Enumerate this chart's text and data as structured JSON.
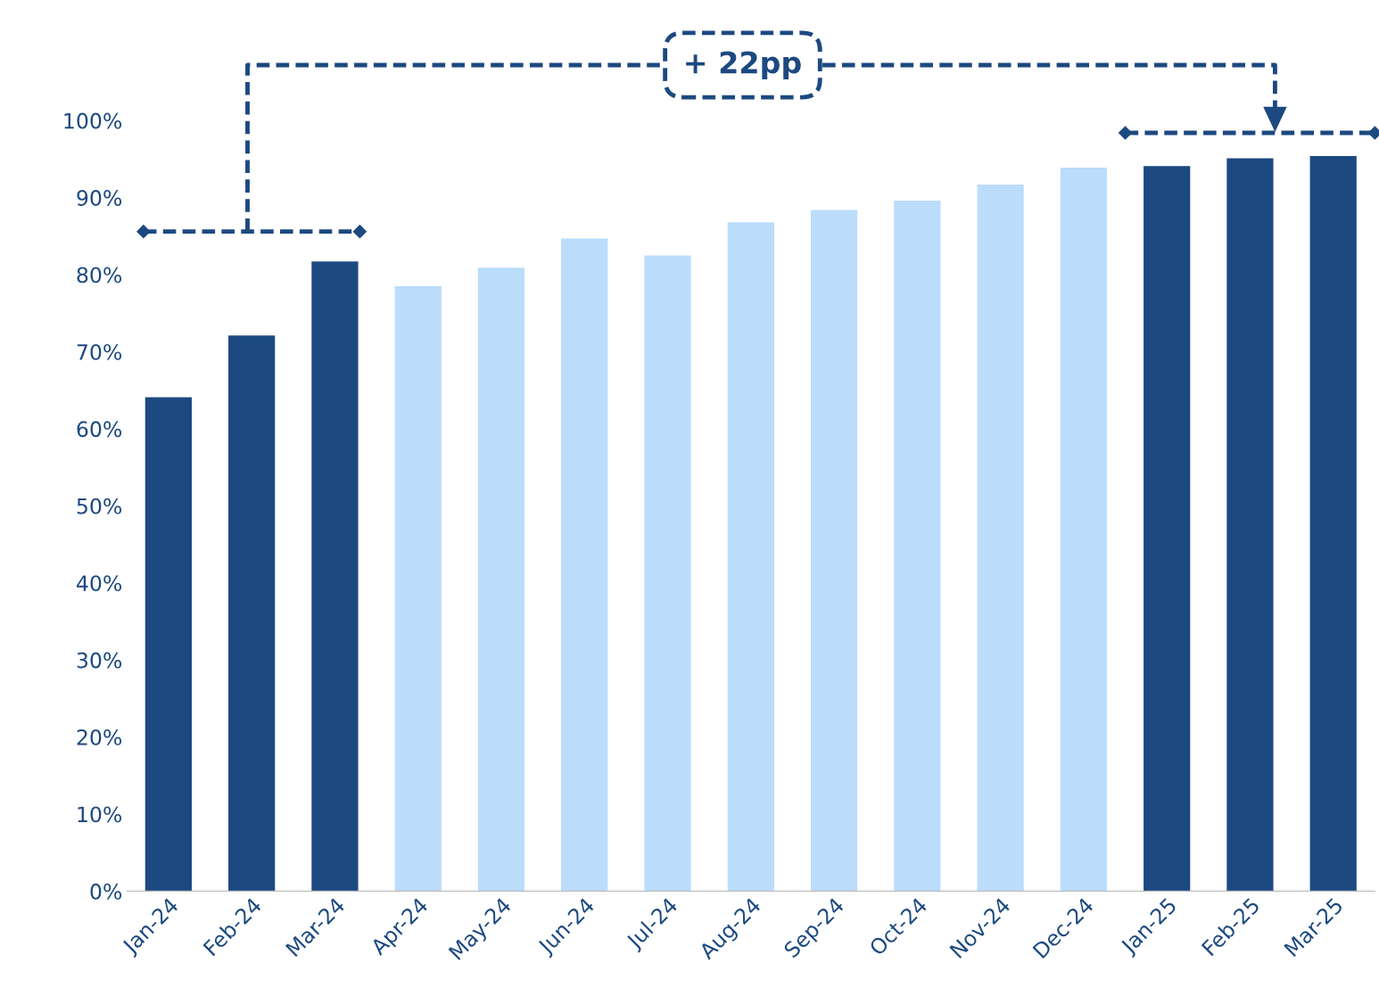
{
  "chart_data": {
    "type": "bar",
    "categories": [
      "Jan-24",
      "Feb-24",
      "Mar-24",
      "Apr-24",
      "May-24",
      "Jun-24",
      "Jul-24",
      "Aug-24",
      "Sep-24",
      "Oct-24",
      "Nov-24",
      "Dec-24",
      "Jan-25",
      "Feb-25",
      "Mar-25"
    ],
    "values": [
      64.1,
      72.1,
      81.7,
      78.5,
      80.9,
      84.7,
      82.5,
      86.8,
      88.4,
      89.6,
      91.7,
      93.9,
      94.1,
      95.1,
      95.4
    ],
    "colors": [
      "#1c4980",
      "#1c4980",
      "#1c4980",
      "#bbdcfb",
      "#bbdcfb",
      "#bbdcfb",
      "#bbdcfb",
      "#bbdcfb",
      "#bbdcfb",
      "#bbdcfb",
      "#bbdcfb",
      "#bbdcfb",
      "#1c4980",
      "#1c4980",
      "#1c4980"
    ],
    "ylim": [
      0,
      100
    ],
    "yticks": [
      {
        "value": 0,
        "label": "0%"
      },
      {
        "value": 10,
        "label": "10%"
      },
      {
        "value": 20,
        "label": "20%"
      },
      {
        "value": 30,
        "label": "30%"
      },
      {
        "value": 40,
        "label": "40%"
      },
      {
        "value": 50,
        "label": "50%"
      },
      {
        "value": 60,
        "label": "60%"
      },
      {
        "value": 70,
        "label": "70%"
      },
      {
        "value": 80,
        "label": "80%"
      },
      {
        "value": 90,
        "label": "90%"
      },
      {
        "value": 100,
        "label": "100%"
      }
    ],
    "annotations": [
      "+ 22pp"
    ],
    "grid": false,
    "legend": false
  }
}
